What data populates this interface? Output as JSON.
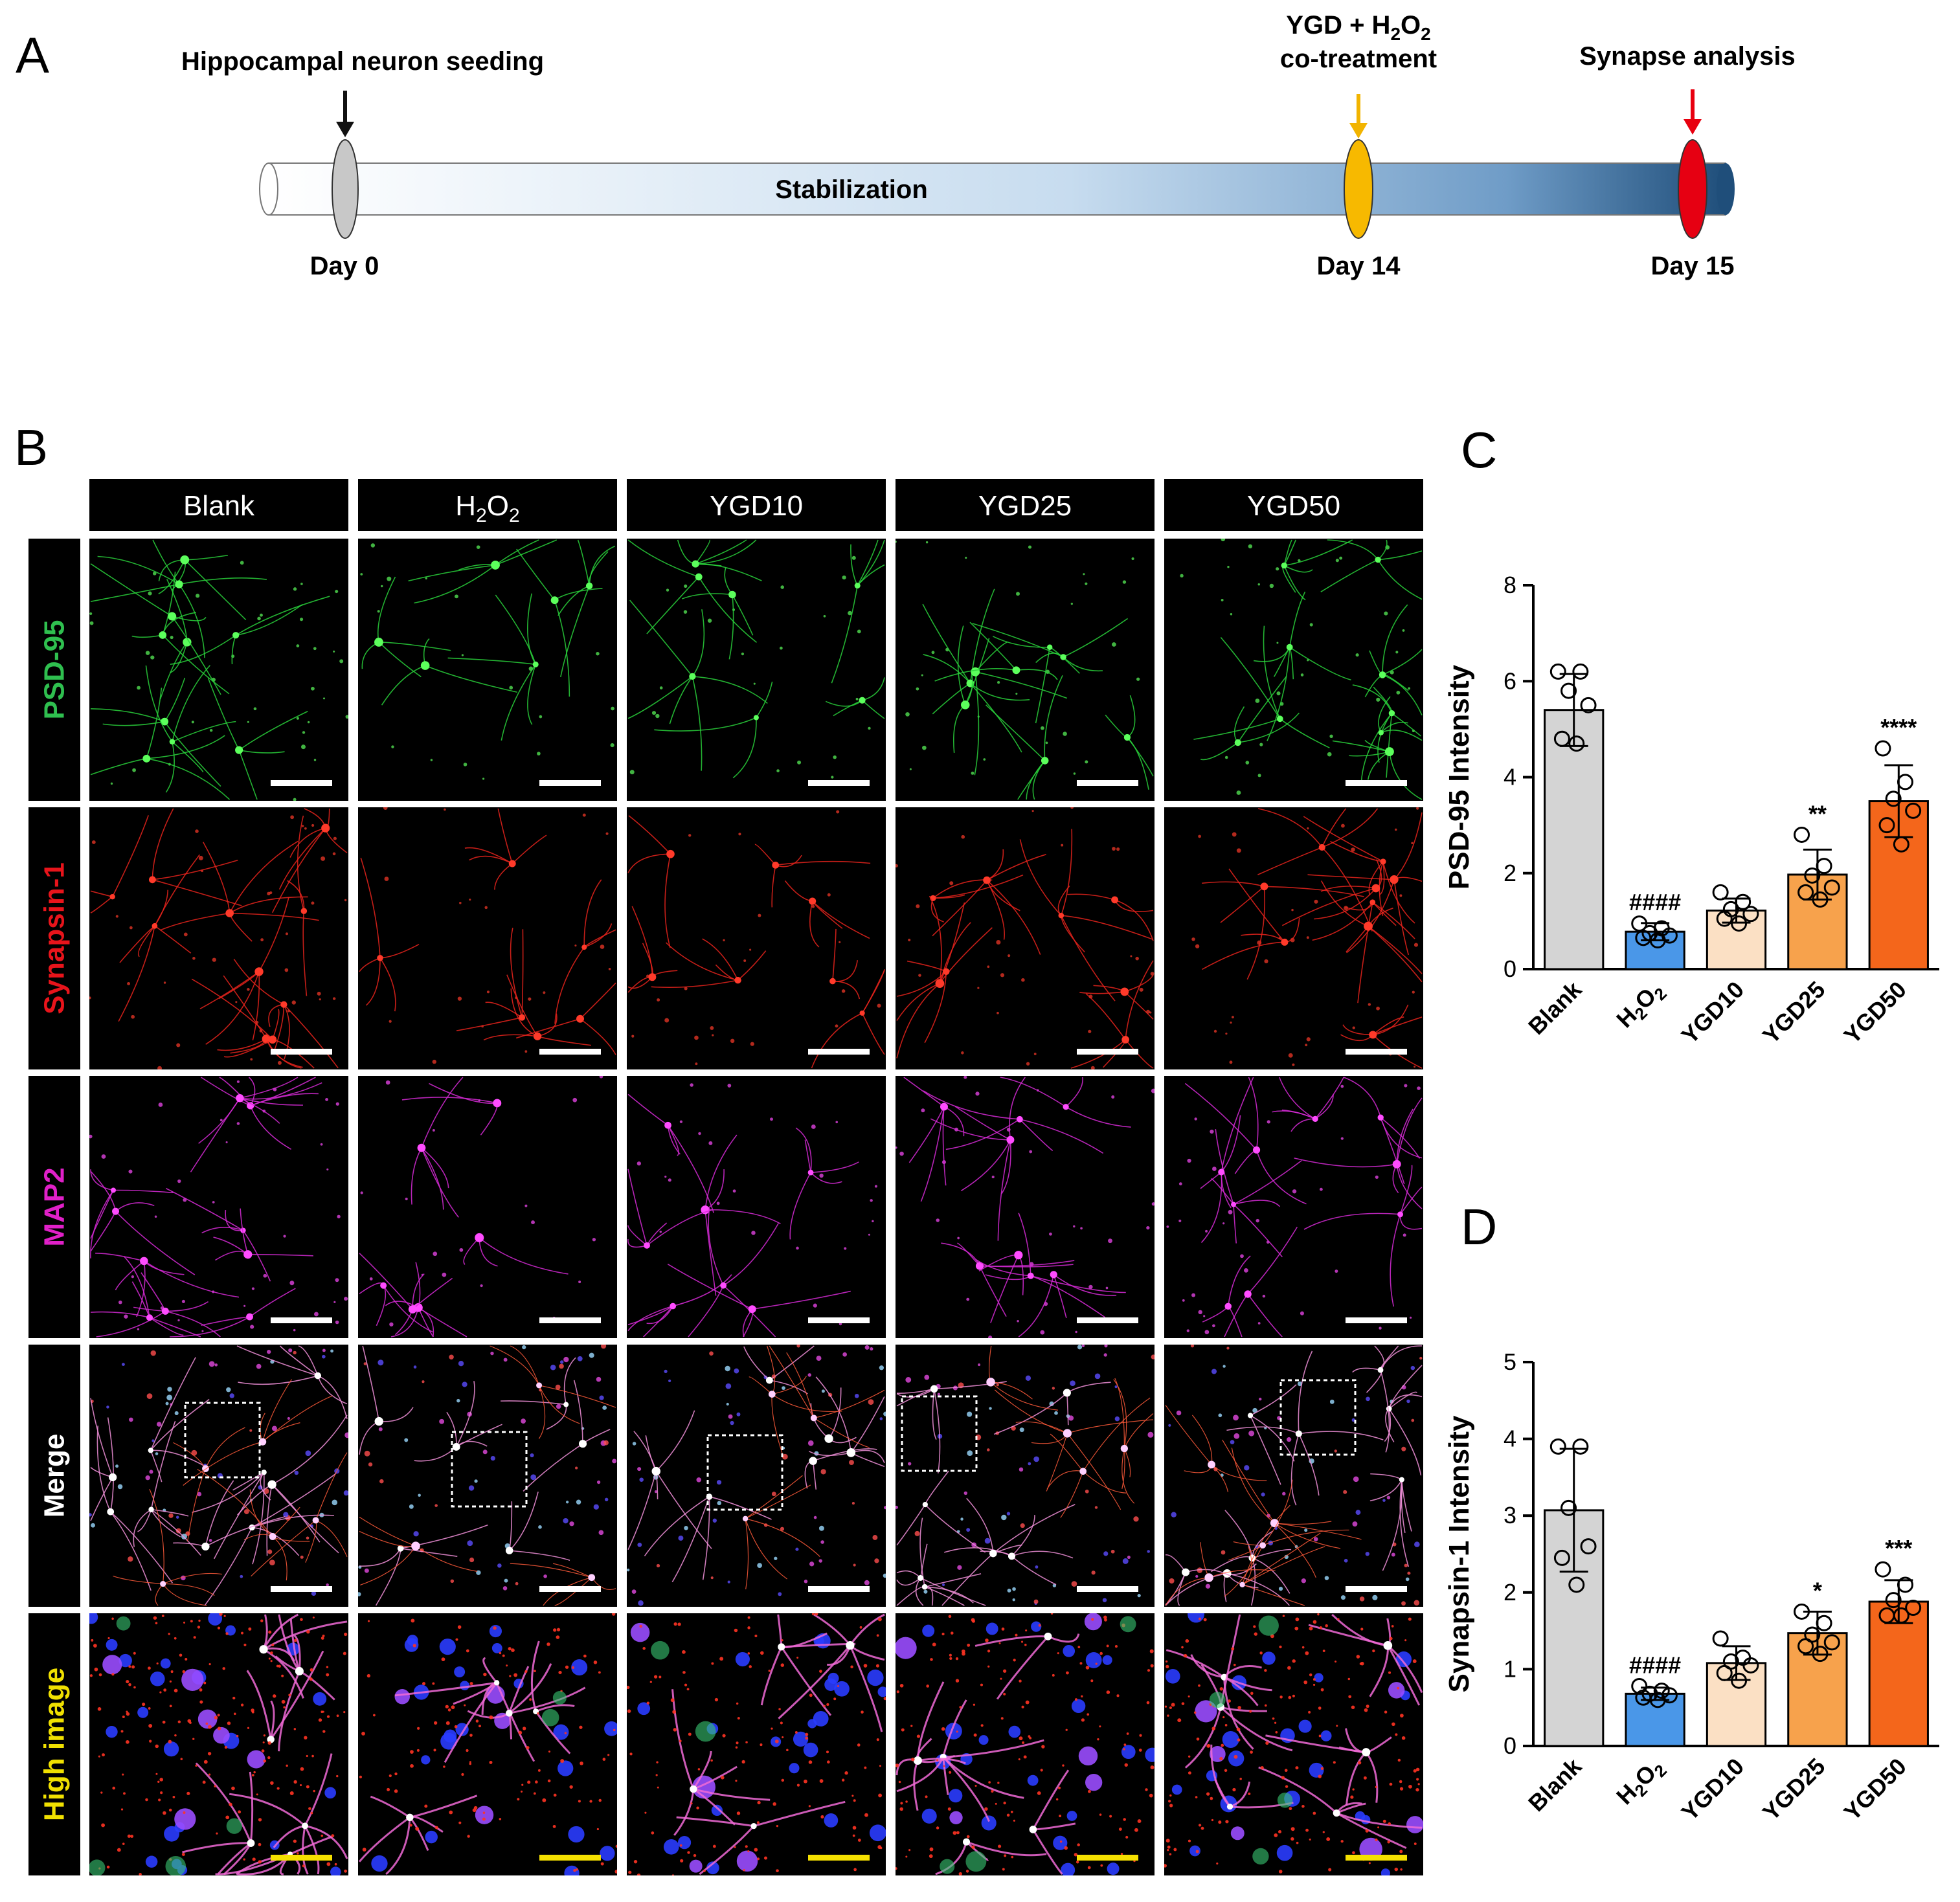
{
  "panel_labels": {
    "a": "A",
    "b": "B",
    "c": "C",
    "d": "D"
  },
  "timeline": {
    "seeding_label": "Hippocampal neuron seeding",
    "cotreat_line1": "YGD + H",
    "cotreat_sub1": "2",
    "cotreat_o": "O",
    "cotreat_sub2": "2",
    "cotreat_line2": "co-treatment",
    "analysis_label": "Synapse analysis",
    "bar_label": "Stabilization",
    "day0": "Day 0",
    "day14": "Day 14",
    "day15": "Day 15",
    "colors": {
      "seed": "#111111",
      "cotreat": "#f2b400",
      "analysis": "#e8000f",
      "marker_seed": "#c8c8c8",
      "marker_cotreat": "#f7b900",
      "marker_analysis": "#e60012",
      "bar_start": "#ffffff",
      "bar_end": "#1f4e7a"
    }
  },
  "micrographs": {
    "columns": [
      "Blank",
      "H2O2",
      "YGD10",
      "YGD25",
      "YGD50"
    ],
    "h2o2_parts": {
      "h": "H",
      "sub1": "2",
      "o": "O",
      "sub2": "2"
    },
    "rows": [
      {
        "label": "PSD-95",
        "color": "#2fbf4f",
        "channel": "green"
      },
      {
        "label": "Synapsin-1",
        "color": "#e8141b",
        "channel": "red"
      },
      {
        "label": "MAP2",
        "color": "#e020c8",
        "channel": "magenta"
      },
      {
        "label": "Merge",
        "color": "#ffffff",
        "channel": "merge"
      },
      {
        "label": "High image",
        "color": "#f0e000",
        "channel": "zoom"
      }
    ],
    "scalebar_colors": {
      "default": "#ffffff",
      "high_image": "#f5e000"
    }
  },
  "chart_data": [
    {
      "type": "bar",
      "panel": "C",
      "ylabel": "PSD-95 Intensity",
      "categories": [
        "Blank",
        "H2O2",
        "YGD10",
        "YGD25",
        "YGD50"
      ],
      "values": [
        5.4,
        0.78,
        1.22,
        1.97,
        3.5
      ],
      "sd": [
        0.75,
        0.18,
        0.25,
        0.52,
        0.75
      ],
      "points": [
        [
          6.2,
          6.2,
          5.8,
          5.5,
          4.8,
          4.7
        ],
        [
          0.95,
          0.85,
          0.75,
          0.7,
          0.65,
          0.6
        ],
        [
          1.6,
          1.4,
          1.25,
          1.15,
          1.05,
          0.95
        ],
        [
          2.8,
          2.15,
          1.95,
          1.7,
          1.6,
          1.45
        ],
        [
          4.6,
          3.9,
          3.55,
          3.3,
          3.0,
          2.6
        ]
      ],
      "significance": [
        "",
        "####",
        "",
        "**",
        "****"
      ],
      "ylim": [
        0,
        8
      ],
      "yticks": [
        0,
        2,
        4,
        6,
        8
      ],
      "colors": [
        "#d4d4d4",
        "#4a97e8",
        "#fbe0c4",
        "#f7a24c",
        "#f4661b"
      ]
    },
    {
      "type": "bar",
      "panel": "D",
      "ylabel": "Synapsin-1 Intensity",
      "categories": [
        "Blank",
        "H2O2",
        "YGD10",
        "YGD25",
        "YGD50"
      ],
      "values": [
        3.07,
        0.68,
        1.08,
        1.47,
        1.88
      ],
      "sd": [
        0.8,
        0.08,
        0.22,
        0.28,
        0.28
      ],
      "points": [
        [
          3.9,
          3.9,
          3.1,
          2.6,
          2.45,
          2.1
        ],
        [
          0.78,
          0.72,
          0.68,
          0.66,
          0.63,
          0.6
        ],
        [
          1.4,
          1.15,
          1.1,
          1.05,
          0.95,
          0.85
        ],
        [
          1.75,
          1.6,
          1.45,
          1.35,
          1.3,
          1.2
        ],
        [
          2.3,
          2.1,
          1.9,
          1.8,
          1.7,
          1.7
        ]
      ],
      "significance": [
        "",
        "####",
        "",
        "*",
        "***"
      ],
      "ylim": [
        0,
        5
      ],
      "yticks": [
        0,
        1,
        2,
        3,
        4,
        5
      ],
      "colors": [
        "#d4d4d4",
        "#4a97e8",
        "#fbe0c4",
        "#f7a24c",
        "#f4661b"
      ]
    }
  ]
}
